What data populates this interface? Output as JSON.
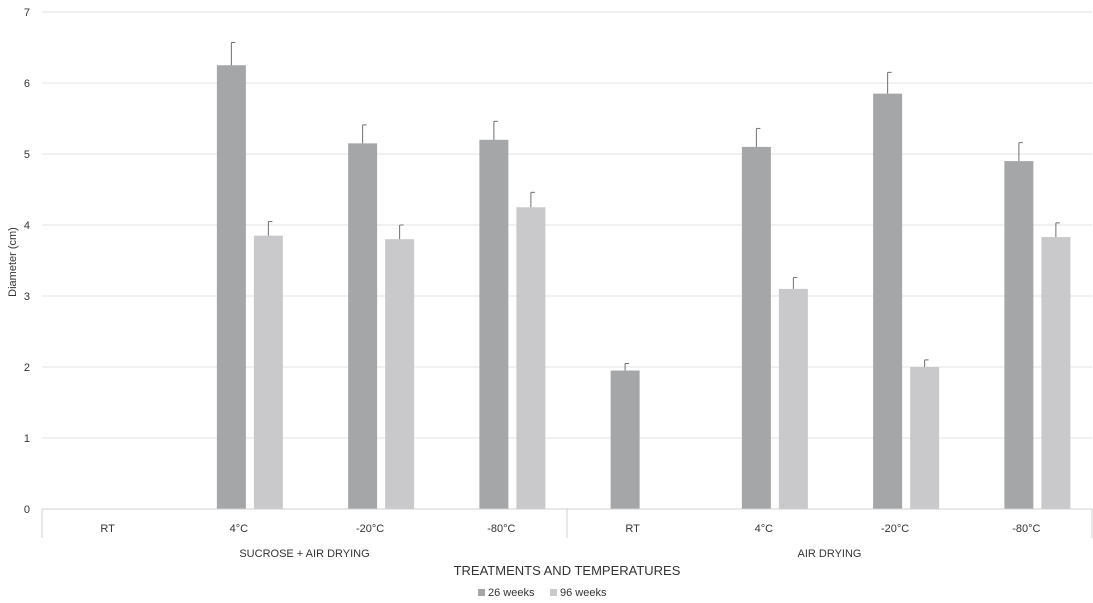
{
  "chart_data": {
    "type": "bar",
    "title": "",
    "xlabel": "TREATMENTS AND TEMPERATURES",
    "ylabel": "Diameter (cm)",
    "ylim": [
      0,
      7
    ],
    "yticks": [
      "0",
      "1",
      "2",
      "3",
      "4",
      "5",
      "6",
      "7"
    ],
    "grid": true,
    "legend_position": "bottom",
    "groups": [
      {
        "label": "SUCROSE + AIR DRYING",
        "categories": [
          "RT",
          "4°C",
          "-20°C",
          "-80°C"
        ]
      },
      {
        "label": "AIR DRYING",
        "categories": [
          "RT",
          "4°C",
          "-20°C",
          "-80°C"
        ]
      }
    ],
    "categories": [
      "RT",
      "4°C",
      "-20°C",
      "-80°C",
      "RT",
      "4°C",
      "-20°C",
      "-80°C"
    ],
    "series": [
      {
        "name": "26 weeks",
        "color": "#a5a6a8",
        "values": [
          0,
          6.25,
          5.15,
          5.2,
          1.95,
          5.1,
          5.85,
          4.9
        ],
        "errors": [
          0,
          0.32,
          0.26,
          0.26,
          0.1,
          0.26,
          0.3,
          0.26
        ]
      },
      {
        "name": "96 weeks",
        "color": "#c9c9cb",
        "values": [
          0,
          3.85,
          3.8,
          4.25,
          0,
          3.1,
          2.0,
          3.83
        ],
        "errors": [
          0,
          0.2,
          0.2,
          0.21,
          0,
          0.16,
          0.1,
          0.2
        ]
      }
    ]
  }
}
